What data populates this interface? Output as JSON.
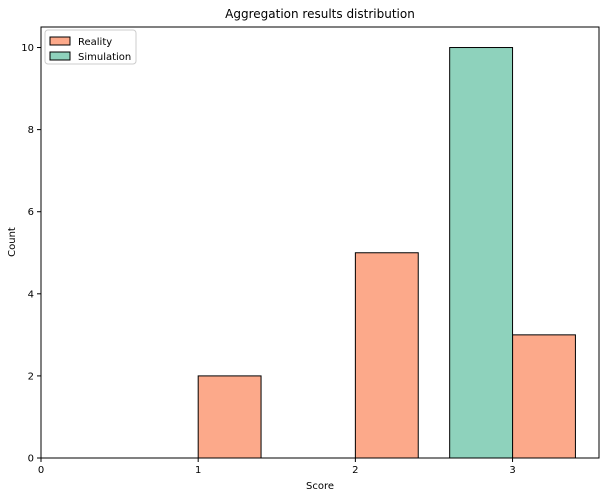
{
  "chart_data": {
    "type": "bar",
    "title": "Aggregation results distribution",
    "xlabel": "Score",
    "ylabel": "Count",
    "xlim": [
      0,
      3.55
    ],
    "ylim": [
      0,
      10.5
    ],
    "xticks": [
      0,
      1,
      2,
      3
    ],
    "yticks": [
      0,
      2,
      4,
      6,
      8,
      10
    ],
    "legend": "top-left",
    "grid": false,
    "series": [
      {
        "name": "Reality",
        "color": "#fca98a",
        "bins": [
          {
            "x0": 1.0,
            "x1": 1.4,
            "value": 2
          },
          {
            "x0": 2.0,
            "x1": 2.4,
            "value": 5
          },
          {
            "x0": 3.0,
            "x1": 3.4,
            "value": 3
          }
        ]
      },
      {
        "name": "Simulation",
        "color": "#8ed2bc",
        "bins": [
          {
            "x0": 2.6,
            "x1": 3.0,
            "value": 10
          }
        ]
      }
    ]
  }
}
